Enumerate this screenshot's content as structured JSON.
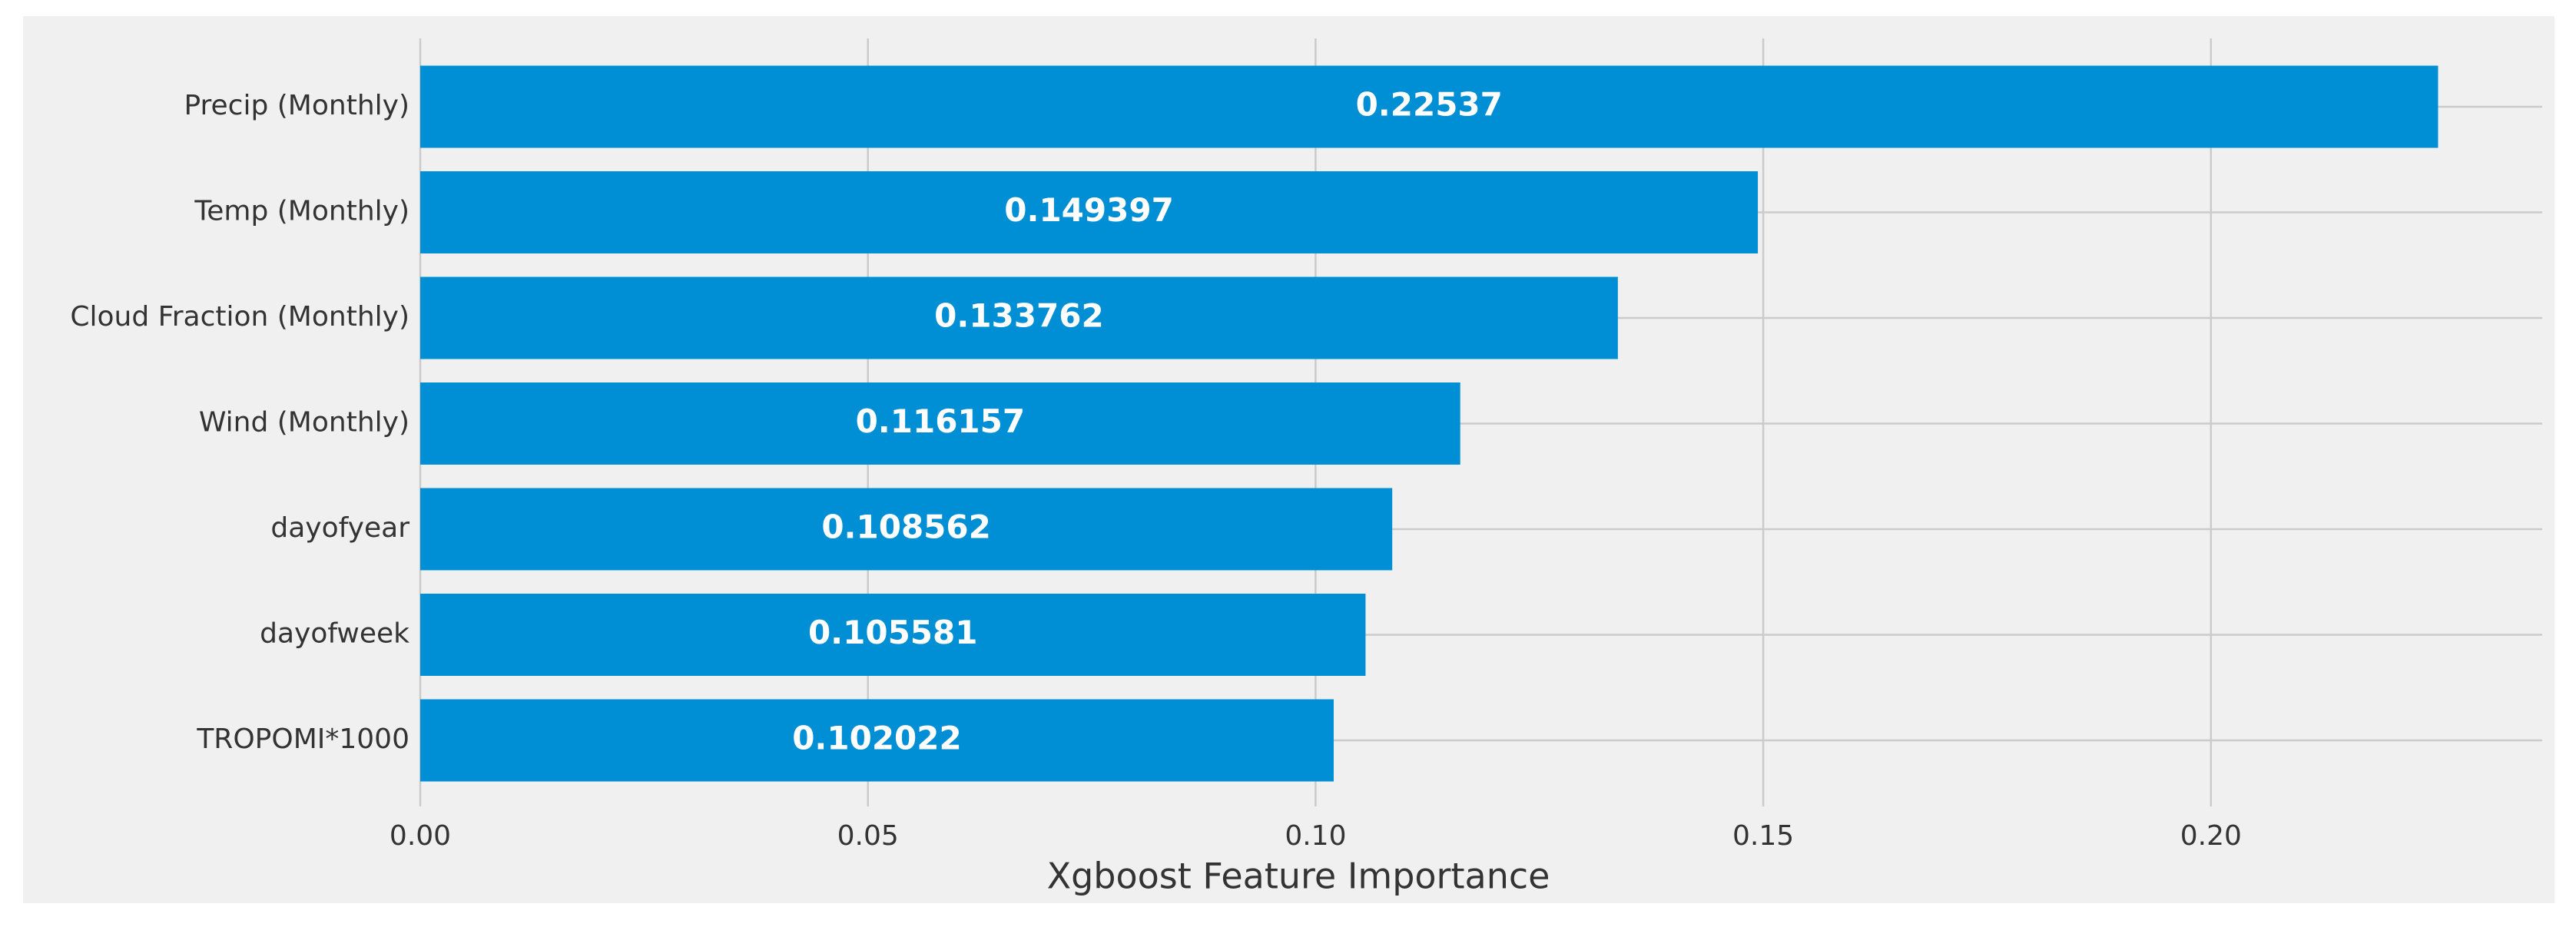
{
  "chart_data": {
    "type": "barh",
    "xlabel": "Xgboost Feature Importance",
    "categories": [
      "Precip (Monthly)",
      "Temp (Monthly)",
      "Cloud Fraction (Monthly)",
      "Wind (Monthly)",
      "dayofyear",
      "dayofweek",
      "TROPOMI*1000"
    ],
    "values": [
      0.22537,
      0.149397,
      0.133762,
      0.116157,
      0.108562,
      0.105581,
      0.102022
    ],
    "color": "#008fd5",
    "xlim": [
      0,
      0.237
    ],
    "xticks": [
      {
        "value": 0,
        "label": "0.00"
      },
      {
        "value": 0.05,
        "label": "0.05"
      },
      {
        "value": 0.1,
        "label": "0.10"
      },
      {
        "value": 0.15,
        "label": "0.15"
      },
      {
        "value": 0.2,
        "label": "0.20"
      }
    ],
    "grid": true
  }
}
